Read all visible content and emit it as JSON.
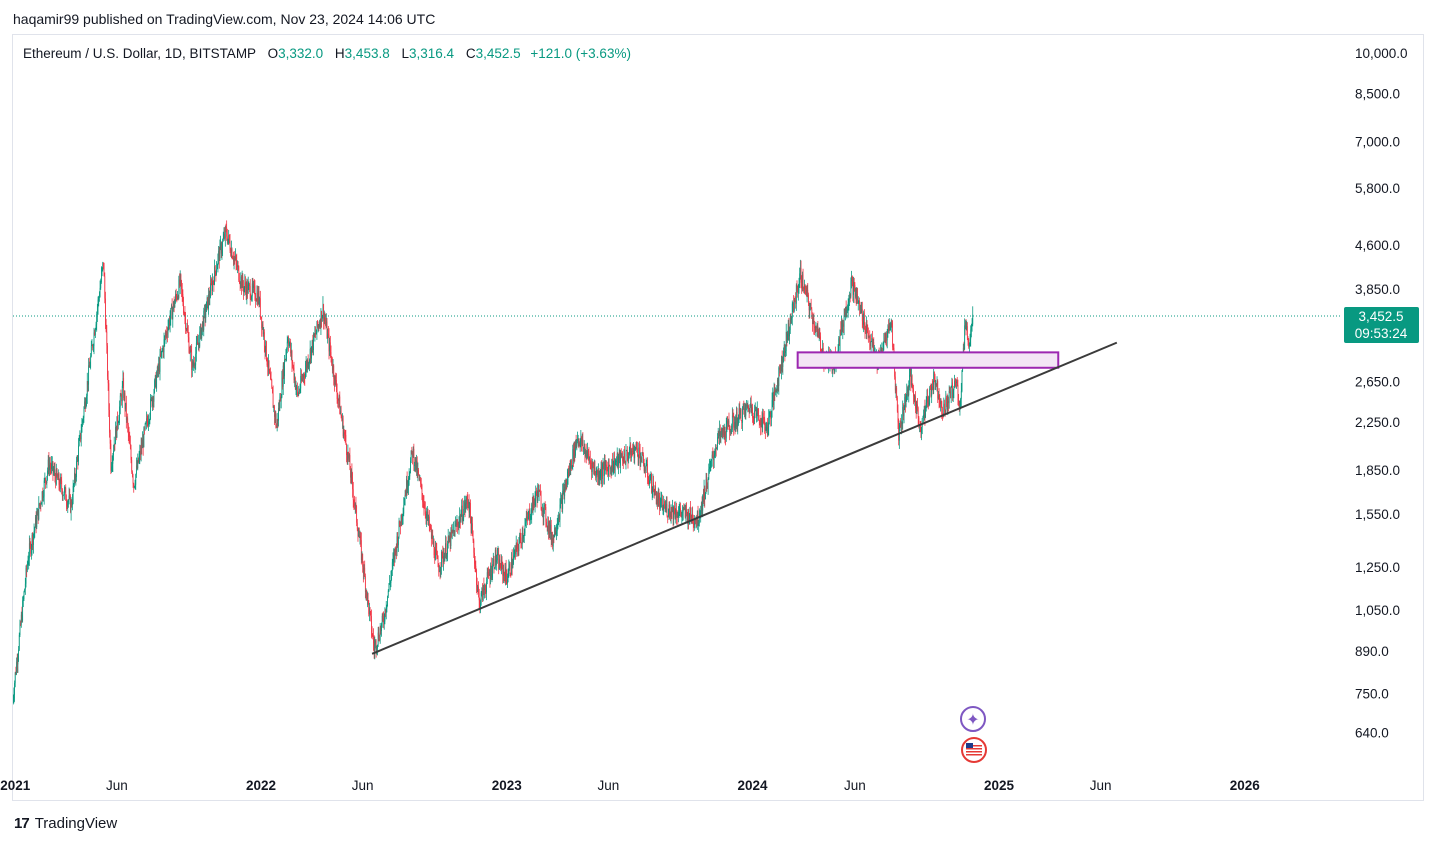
{
  "header": {
    "publisher_text": "haqamir99 published on TradingView.com, Nov 23, 2024 14:06 UTC"
  },
  "legend": {
    "symbol": "Ethereum / U.S. Dollar, 1D, BITSTAMP",
    "open_label": "O",
    "open_value": "3,332.0",
    "high_label": "H",
    "high_value": "3,453.8",
    "low_label": "L",
    "low_value": "3,316.4",
    "close_label": "C",
    "close_value": "3,452.5",
    "change": "+121.0 (+3.63%)"
  },
  "price_badge": {
    "price": "3,452.5",
    "countdown": "09:53:24",
    "color": "#089981"
  },
  "footer": {
    "brand": "TradingView"
  },
  "colors": {
    "up": "#089981",
    "down": "#f23645",
    "trendline": "#3b3b3b",
    "zone_border": "#9c27b0",
    "zone_fill": "#f3e5f5",
    "price_line": "#089981"
  },
  "icons": [
    "sparkle-icon",
    "us-flag-icon"
  ],
  "chart_data": {
    "type": "candlestick",
    "title": "Ethereum / U.S. Dollar, 1D, BITSTAMP",
    "y_scale": "log",
    "y_ticks": [
      "10,000.0",
      "8,500.0",
      "7,000.0",
      "5,800.0",
      "4,600.0",
      "3,850.0",
      "2,650.0",
      "2,250.0",
      "1,850.0",
      "1,550.0",
      "1,250.0",
      "1,050.0",
      "890.0",
      "750.0",
      "640.0"
    ],
    "x_ticks": [
      {
        "label": "2021",
        "bold": true
      },
      {
        "label": "Jun",
        "bold": false
      },
      {
        "label": "2022",
        "bold": true
      },
      {
        "label": "Jun",
        "bold": false
      },
      {
        "label": "2023",
        "bold": true
      },
      {
        "label": "Jun",
        "bold": false
      },
      {
        "label": "2024",
        "bold": true
      },
      {
        "label": "Jun",
        "bold": false
      },
      {
        "label": "2025",
        "bold": true
      },
      {
        "label": "Jun",
        "bold": false
      },
      {
        "label": "2026",
        "bold": true
      }
    ],
    "x_tick_dates": [
      "2021-01-01",
      "2021-06-01",
      "2022-01-01",
      "2022-06-01",
      "2023-01-01",
      "2023-06-01",
      "2024-01-01",
      "2024-06-01",
      "2025-01-01",
      "2025-06-01",
      "2026-01-01"
    ],
    "price_path": [
      [
        "2020-12-28",
        730
      ],
      [
        "2021-01-20",
        1300
      ],
      [
        "2021-02-20",
        1900
      ],
      [
        "2021-03-25",
        1600
      ],
      [
        "2021-05-12",
        4300
      ],
      [
        "2021-05-23",
        1900
      ],
      [
        "2021-06-10",
        2600
      ],
      [
        "2021-06-26",
        1750
      ],
      [
        "2021-08-15",
        3300
      ],
      [
        "2021-09-03",
        3950
      ],
      [
        "2021-09-21",
        2800
      ],
      [
        "2021-10-30",
        4400
      ],
      [
        "2021-11-10",
        4850
      ],
      [
        "2021-12-05",
        3900
      ],
      [
        "2021-12-28",
        3750
      ],
      [
        "2022-01-24",
        2200
      ],
      [
        "2022-02-10",
        3200
      ],
      [
        "2022-02-24",
        2500
      ],
      [
        "2022-04-03",
        3550
      ],
      [
        "2022-05-12",
        1900
      ],
      [
        "2022-06-18",
        900
      ],
      [
        "2022-07-01",
        1000
      ],
      [
        "2022-08-14",
        2000
      ],
      [
        "2022-09-21",
        1250
      ],
      [
        "2022-11-05",
        1650
      ],
      [
        "2022-11-21",
        1080
      ],
      [
        "2022-12-15",
        1300
      ],
      [
        "2023-01-01",
        1200
      ],
      [
        "2023-02-16",
        1700
      ],
      [
        "2023-03-10",
        1400
      ],
      [
        "2023-04-16",
        2120
      ],
      [
        "2023-05-15",
        1820
      ],
      [
        "2023-07-14",
        2020
      ],
      [
        "2023-08-17",
        1600
      ],
      [
        "2023-10-12",
        1520
      ],
      [
        "2023-11-10",
        2100
      ],
      [
        "2023-12-28",
        2400
      ],
      [
        "2024-01-23",
        2200
      ],
      [
        "2024-03-12",
        4080
      ],
      [
        "2024-04-17",
        2900
      ],
      [
        "2024-05-01",
        2850
      ],
      [
        "2024-05-27",
        3950
      ],
      [
        "2024-07-05",
        2850
      ],
      [
        "2024-07-25",
        3400
      ],
      [
        "2024-08-05",
        2150
      ],
      [
        "2024-08-22",
        2700
      ],
      [
        "2024-09-06",
        2200
      ],
      [
        "2024-09-27",
        2700
      ],
      [
        "2024-10-10",
        2350
      ],
      [
        "2024-10-29",
        2650
      ],
      [
        "2024-11-04",
        2400
      ],
      [
        "2024-11-12",
        3400
      ],
      [
        "2024-11-18",
        3050
      ],
      [
        "2024-11-23",
        3452.5
      ]
    ],
    "trendline": {
      "from": [
        "2022-06-15",
        880
      ],
      "to": [
        "2025-06-25",
        3100
      ]
    },
    "zone": {
      "from_date": "2024-03-08",
      "to_date": "2025-03-30",
      "low": 2800,
      "high": 2980
    },
    "last_price": 3452.5
  }
}
